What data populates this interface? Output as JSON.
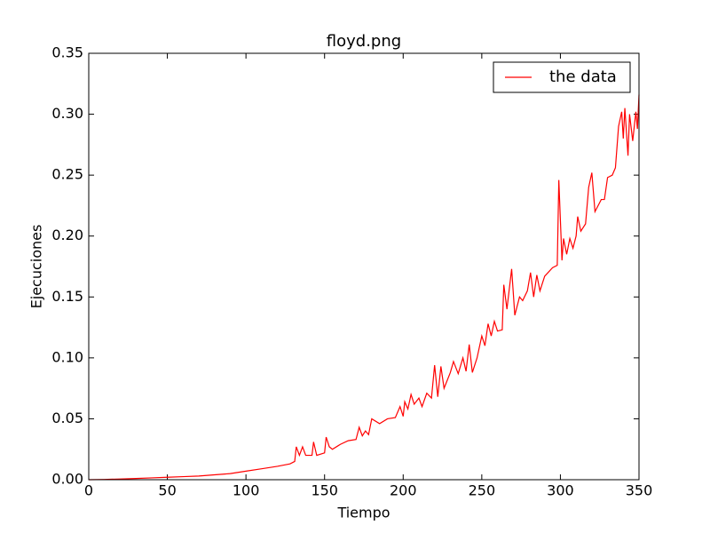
{
  "chart_data": {
    "type": "line",
    "title": "floyd.png",
    "x_label": "Tiempo",
    "y_label": "Ejecuciones",
    "x": [
      0,
      10,
      20,
      30,
      40,
      50,
      60,
      70,
      80,
      90,
      100,
      110,
      120,
      128,
      131,
      132,
      134,
      136,
      138,
      142,
      143,
      145,
      150,
      151,
      153,
      155,
      160,
      165,
      170,
      172,
      174,
      176,
      178,
      180,
      185,
      190,
      195,
      198,
      200,
      201,
      203,
      205,
      207,
      210,
      212,
      215,
      218,
      220,
      222,
      224,
      226,
      230,
      232,
      235,
      238,
      240,
      242,
      244,
      247,
      250,
      252,
      254,
      256,
      258,
      260,
      263,
      264,
      266,
      269,
      271,
      274,
      276,
      279,
      281,
      283,
      285,
      287,
      290,
      295,
      298,
      299,
      301,
      302,
      304,
      306,
      308,
      310,
      311,
      313,
      316,
      318,
      320,
      322,
      326,
      328,
      330,
      333,
      335,
      337,
      339,
      340,
      341,
      343,
      344,
      346,
      348,
      349,
      350
    ],
    "series": [
      {
        "name": "the data",
        "color": "#ff0000",
        "values": [
          0,
          0.0002,
          0.0006,
          0.001,
          0.0015,
          0.002,
          0.0025,
          0.003,
          0.004,
          0.005,
          0.007,
          0.009,
          0.011,
          0.013,
          0.015,
          0.027,
          0.02,
          0.027,
          0.02,
          0.02,
          0.031,
          0.02,
          0.022,
          0.035,
          0.027,
          0.025,
          0.029,
          0.032,
          0.033,
          0.043,
          0.036,
          0.04,
          0.037,
          0.05,
          0.046,
          0.05,
          0.051,
          0.06,
          0.052,
          0.064,
          0.058,
          0.07,
          0.062,
          0.067,
          0.06,
          0.071,
          0.067,
          0.094,
          0.068,
          0.093,
          0.075,
          0.088,
          0.097,
          0.087,
          0.1,
          0.089,
          0.111,
          0.088,
          0.1,
          0.118,
          0.11,
          0.128,
          0.118,
          0.13,
          0.122,
          0.123,
          0.16,
          0.14,
          0.173,
          0.135,
          0.15,
          0.147,
          0.155,
          0.17,
          0.15,
          0.168,
          0.155,
          0.167,
          0.174,
          0.176,
          0.246,
          0.18,
          0.198,
          0.185,
          0.198,
          0.19,
          0.2,
          0.216,
          0.204,
          0.21,
          0.24,
          0.252,
          0.22,
          0.23,
          0.23,
          0.248,
          0.25,
          0.256,
          0.29,
          0.302,
          0.28,
          0.305,
          0.266,
          0.3,
          0.278,
          0.302,
          0.288,
          0.316
        ]
      }
    ],
    "xlim": [
      0,
      350
    ],
    "xticks": [
      0,
      50,
      100,
      150,
      200,
      250,
      300,
      350
    ],
    "ylim": [
      0,
      0.35
    ],
    "yticks": [
      {
        "value": 0,
        "label": "0.00"
      },
      {
        "value": 0.05,
        "label": "0.05"
      },
      {
        "value": 0.1,
        "label": "0.10"
      },
      {
        "value": 0.15,
        "label": "0.15"
      },
      {
        "value": 0.2,
        "label": "0.20"
      },
      {
        "value": 0.25,
        "label": "0.25"
      },
      {
        "value": 0.3,
        "label": "0.30"
      },
      {
        "value": 0.35,
        "label": "0.35"
      }
    ],
    "grid": false,
    "legend": "upper right"
  }
}
